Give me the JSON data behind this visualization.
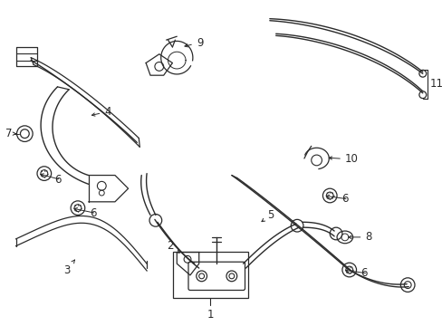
{
  "bg_color": "#ffffff",
  "line_color": "#2a2a2a",
  "figsize": [
    4.89,
    3.6
  ],
  "dpi": 100,
  "parts": {
    "label_fontsize": 8.5
  }
}
